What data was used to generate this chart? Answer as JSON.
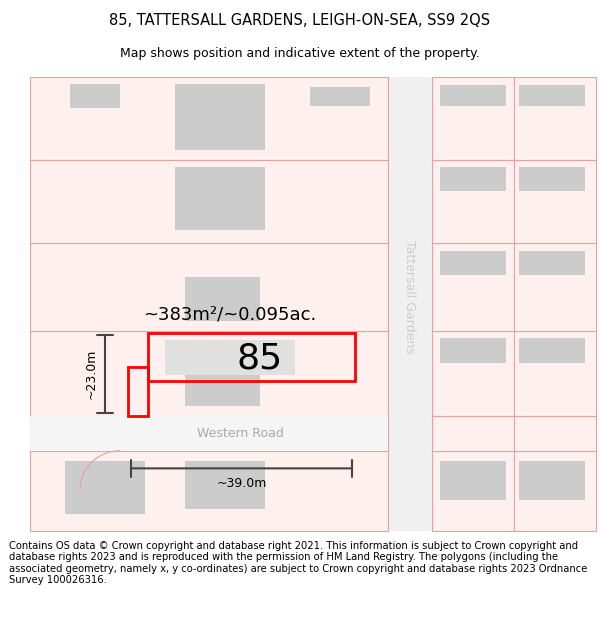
{
  "title_line1": "85, TATTERSALL GARDENS, LEIGH-ON-SEA, SS9 2QS",
  "title_line2": "Map shows position and indicative extent of the property.",
  "footer_text": "Contains OS data © Crown copyright and database right 2021. This information is subject to Crown copyright and database rights 2023 and is reproduced with the permission of HM Land Registry. The polygons (including the associated geometry, namely x, y co-ordinates) are subject to Crown copyright and database rights 2023 Ordnance Survey 100026316.",
  "area_label": "~383m²/~0.095ac.",
  "width_label": "~39.0m",
  "height_label": "~23.0m",
  "plot_number": "85",
  "road_name": "Western Road",
  "street_name": "Tattersall Gardens",
  "bg_color": "#ffffff",
  "parcel_outline": "#ff0000",
  "building_fill": "#cccccc",
  "plot_fill": "#e0e0e0",
  "pink_line": "#e8a0a0",
  "pink_fill": "#fff0f0",
  "road_color": "#bbbbbb",
  "dim_color": "#444444",
  "title_fontsize": 10.5,
  "subtitle_fontsize": 9,
  "footer_fontsize": 7.2,
  "area_fontsize": 13,
  "plot_num_fontsize": 26,
  "dim_fontsize": 9,
  "road_label_color": "#aaaaaa",
  "street_label_color": "#cccccc"
}
